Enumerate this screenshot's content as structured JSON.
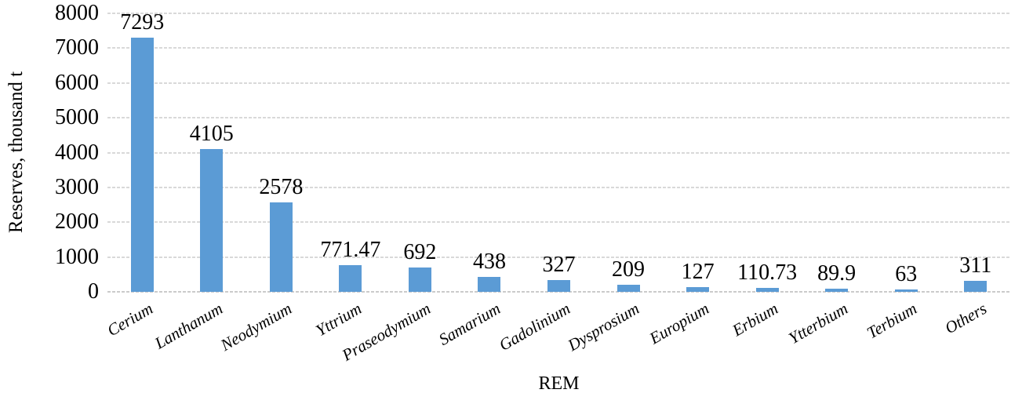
{
  "chart_data": {
    "type": "bar",
    "title": "",
    "xlabel": "REM",
    "ylabel": "Reserves, thousand t",
    "categories": [
      "Cerium",
      "Lanthanum",
      "Neodymium",
      "Yttrium",
      "Praseodymium",
      "Samarium",
      "Gadolinium",
      "Dysprosium",
      "Europium",
      "Erbium",
      "Ytterbium",
      "Terbium",
      "Others"
    ],
    "values": [
      7293,
      4105,
      2578,
      771.47,
      692,
      438,
      327,
      209,
      127,
      110.73,
      89.9,
      63,
      311
    ],
    "value_labels": [
      "7293",
      "4105",
      "2578",
      "771.47",
      "692",
      "438",
      "327",
      "209",
      "127",
      "110.73",
      "89.9",
      "63",
      "311"
    ],
    "ylim": [
      0,
      8000
    ],
    "yticks": [
      0,
      1000,
      2000,
      3000,
      4000,
      5000,
      6000,
      7000,
      8000
    ],
    "ytick_labels": [
      "0",
      "1000",
      "2000",
      "3000",
      "4000",
      "5000",
      "6000",
      "7000",
      "8000"
    ],
    "grid": true,
    "legend": false,
    "data_labels": true,
    "bar_color": "#5B9BD5",
    "gridline_color": "#D9D9D9",
    "text_color": "#000000",
    "background": "#FFFFFF"
  }
}
